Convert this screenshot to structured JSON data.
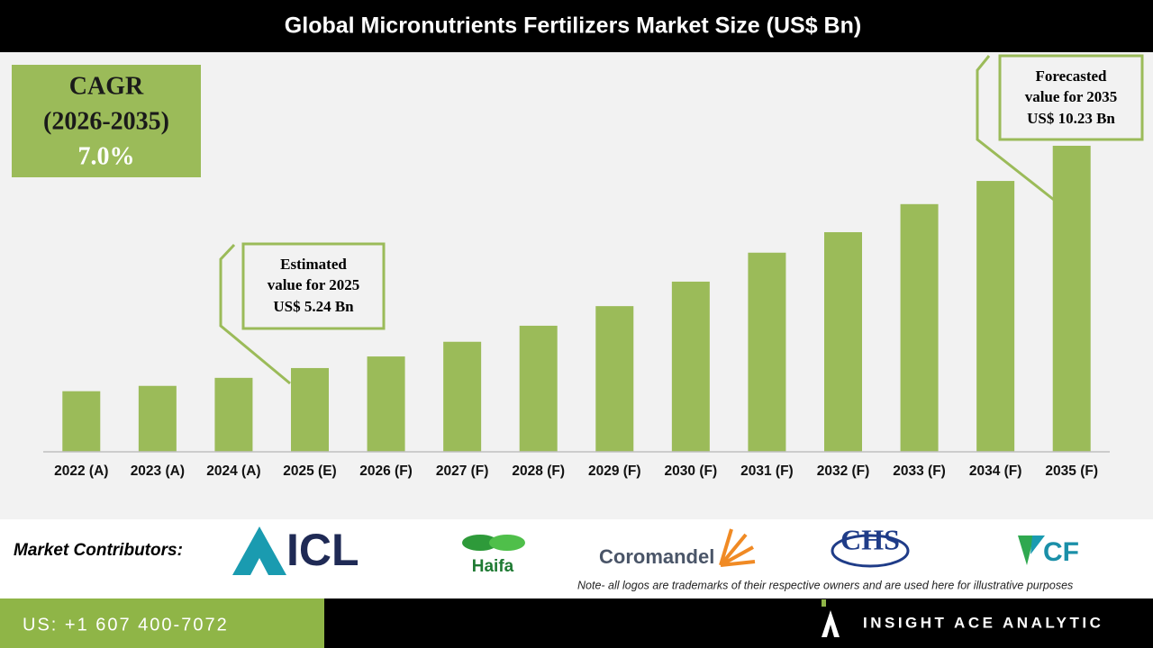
{
  "chart_data": {
    "type": "bar",
    "title": "Global Micronutrients Fertilizers Market Size (US$ Bn)",
    "categories": [
      "2022 (A)",
      "2023 (A)",
      "2024 (A)",
      "2025 (E)",
      "2026 (F)",
      "2027 (F)",
      "2028 (F)",
      "2029 (F)",
      "2030 (F)",
      "2031 (F)",
      "2032 (F)",
      "2033 (F)",
      "2034 (F)",
      "2035 (F)"
    ],
    "values": [
      4.72,
      4.84,
      5.02,
      5.24,
      5.5,
      5.83,
      6.19,
      6.63,
      7.18,
      7.83,
      8.29,
      8.92,
      9.44,
      10.23
    ],
    "color": "#9bbb59",
    "ylim": [
      3.36,
      12.29
    ],
    "cagr": {
      "label": "CAGR",
      "period": "(2026-2035)",
      "value": "7.0%"
    },
    "annotations": [
      {
        "lines": [
          "Estimated",
          "value for 2025",
          "US$ 5.24 Bn"
        ]
      },
      {
        "lines": [
          "Forecasted",
          "value for 2035",
          "US$ 10.23 Bn"
        ]
      }
    ]
  },
  "contributors": {
    "label": "Market Contributors:",
    "logos": [
      "ICL",
      "Haifa",
      "Coromandel",
      "CHS",
      "CF"
    ],
    "note": "Note- all logos are trademarks of their respective owners and are used here for illustrative purposes"
  },
  "footer": {
    "phone": "US: +1 607 400-7072",
    "brand": "INSIGHT ACE ANALYTIC"
  }
}
